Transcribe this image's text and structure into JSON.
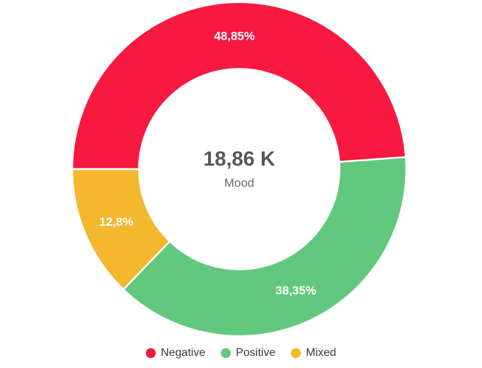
{
  "chart_data": {
    "type": "pie",
    "donut": true,
    "title": "Mood",
    "categories": [
      "Negative",
      "Positive",
      "Mixed"
    ],
    "values": [
      48.85,
      38.35,
      12.8
    ],
    "unit": "%",
    "series": [
      {
        "name": "Negative",
        "value": 48.85,
        "label": "48,85%",
        "color": "#F7193F"
      },
      {
        "name": "Positive",
        "value": 38.35,
        "label": "38,35%",
        "color": "#62C87E"
      },
      {
        "name": "Mixed",
        "value": 12.8,
        "label": "12,8%",
        "color": "#F4B72D"
      }
    ],
    "center": {
      "value": "18,86 K",
      "label": "Mood"
    },
    "start_angle_deg": 270,
    "direction": "clockwise",
    "inner_radius_ratio": 0.6,
    "slice_border_color": "#ffffff",
    "legend_position": "bottom",
    "label_color": "#ffffff"
  }
}
